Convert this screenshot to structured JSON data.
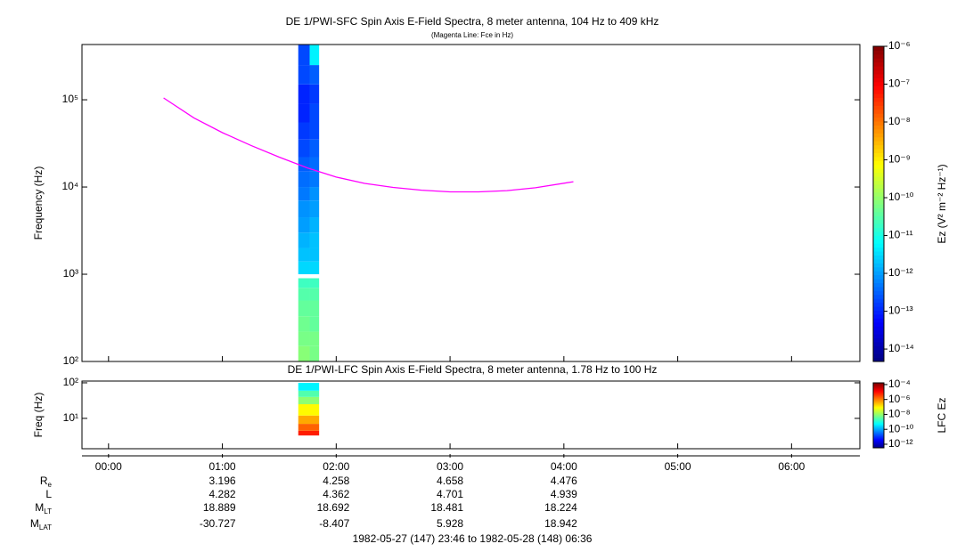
{
  "chart_data": [
    {
      "type": "heatmap",
      "title": "DE 1/PWI-SFC  Spin Axis E-Field Spectra, 8 meter antenna, 104 Hz to 409 kHz",
      "subtitle": "(Magenta Line: Fce in Hz)",
      "ylabel": "Frequency (Hz)",
      "log_y": true,
      "xlim": [
        -14,
        396
      ],
      "ylim": [
        100,
        430000
      ],
      "yticks": [
        {
          "value": 100,
          "label": "10²"
        },
        {
          "value": 1000,
          "label": "10³"
        },
        {
          "value": 10000,
          "label": "10⁴"
        },
        {
          "value": 100000,
          "label": "10⁵"
        }
      ],
      "x_edges": [
        100,
        106,
        111
      ],
      "y_edges": [
        100,
        150,
        220,
        330,
        500,
        700,
        900,
        1000,
        1400,
        2000,
        3000,
        4500,
        7000,
        10000,
        15000,
        22000,
        35000,
        55000,
        90000,
        150000,
        250000,
        430000
      ],
      "z": [
        [
          8e-11,
          6e-11
        ],
        [
          6e-11,
          6e-11
        ],
        [
          5e-11,
          4e-11
        ],
        [
          4e-11,
          4e-11
        ],
        [
          3e-11,
          3e-11
        ],
        [
          2e-11,
          2e-11
        ],
        [
          null,
          null
        ],
        [
          3e-12,
          3e-12
        ],
        [
          2e-12,
          2e-12
        ],
        [
          1.5e-12,
          2e-12
        ],
        [
          1e-12,
          1.5e-12
        ],
        [
          8e-13,
          1e-12
        ],
        [
          5e-13,
          8e-13
        ],
        [
          4e-13,
          5e-13
        ],
        [
          3e-13,
          4e-13
        ],
        [
          2e-13,
          3e-13
        ],
        [
          1.5e-13,
          2e-13
        ],
        [
          1e-13,
          2e-13
        ],
        [
          1e-13,
          1.5e-13
        ],
        [
          2e-13,
          3e-13
        ],
        [
          2e-13,
          5e-12
        ]
      ],
      "colorbar": {
        "label": "Ez (V² m⁻² Hz⁻¹)",
        "zlim": [
          4.7e-15,
          1e-06
        ],
        "ticks": [
          {
            "value": 1e-06,
            "label": "10⁻⁶"
          },
          {
            "value": 1e-07,
            "label": "10⁻⁷"
          },
          {
            "value": 1e-08,
            "label": "10⁻⁸"
          },
          {
            "value": 1e-09,
            "label": "10⁻⁹"
          },
          {
            "value": 1e-10,
            "label": "10⁻¹⁰"
          },
          {
            "value": 1e-11,
            "label": "10⁻¹¹"
          },
          {
            "value": 1e-12,
            "label": "10⁻¹²"
          },
          {
            "value": 1e-13,
            "label": "10⁻¹³"
          },
          {
            "value": 1e-14,
            "label": "10⁻¹⁴"
          }
        ]
      },
      "series": [
        {
          "color": "#ff00ff",
          "x": [
            29,
            45,
            60,
            75,
            90,
            105,
            120,
            135,
            150,
            165,
            180,
            195,
            210,
            225,
            245
          ],
          "values": [
            105000,
            62000,
            42000,
            30000,
            22000,
            16500,
            13000,
            11000,
            9900,
            9200,
            8800,
            8800,
            9100,
            9800,
            11500
          ]
        }
      ]
    },
    {
      "type": "heatmap",
      "title": "DE 1/PWI-LFC  Spin Axis E-Field Spectra, 8 meter antenna, 1.78 Hz to 100 Hz",
      "ylabel": "Freq (Hz)",
      "log_y": true,
      "xlim": [
        -14,
        396
      ],
      "ylim": [
        1.4,
        112
      ],
      "yticks": [
        {
          "value": 10,
          "label": "10¹"
        },
        {
          "value": 100,
          "label": "10²"
        }
      ],
      "xticks": [
        {
          "value": 0,
          "label": "00:00"
        },
        {
          "value": 60,
          "label": "01:00"
        },
        {
          "value": 120,
          "label": "02:00"
        },
        {
          "value": 180,
          "label": "03:00"
        },
        {
          "value": 240,
          "label": "04:00"
        },
        {
          "value": 300,
          "label": "05:00"
        },
        {
          "value": 360,
          "label": "06:00"
        }
      ],
      "x_edges": [
        100,
        111
      ],
      "y_edges": [
        3.3,
        4.5,
        7,
        12,
        25,
        40,
        60,
        100
      ],
      "z": [
        [
          8e-06
        ],
        [
          2e-06
        ],
        [
          5e-07
        ],
        [
          1e-07
        ],
        [
          1e-08
        ],
        [
          3e-09
        ],
        [
          5e-10
        ]
      ],
      "colorbar": {
        "label": "LFC Ez",
        "zlim": [
          3.3e-13,
          0.00017
        ],
        "ticks": [
          {
            "value": 0.0001,
            "label": "10⁻⁴"
          },
          {
            "value": 1e-06,
            "label": "10⁻⁶"
          },
          {
            "value": 1e-08,
            "label": "10⁻⁸"
          },
          {
            "value": 1e-10,
            "label": "10⁻¹⁰"
          },
          {
            "value": 1e-12,
            "label": "10⁻¹²"
          }
        ]
      }
    }
  ],
  "ephemeris": {
    "rows": [
      {
        "label": "R",
        "sub": "e",
        "values": [
          3.196,
          4.258,
          4.658,
          4.476
        ]
      },
      {
        "label": "L",
        "values": [
          4.282,
          4.362,
          4.701,
          4.939
        ]
      },
      {
        "label": "M",
        "sub": "LT",
        "values": [
          18.889,
          18.692,
          18.481,
          18.224
        ]
      },
      {
        "label": "M",
        "sub": "LAT",
        "values": [
          -30.727,
          -8.407,
          5.928,
          18.942
        ]
      }
    ]
  },
  "time_range": "1982-05-27 (147) 23:46 to 1982-05-28 (148) 06:36"
}
